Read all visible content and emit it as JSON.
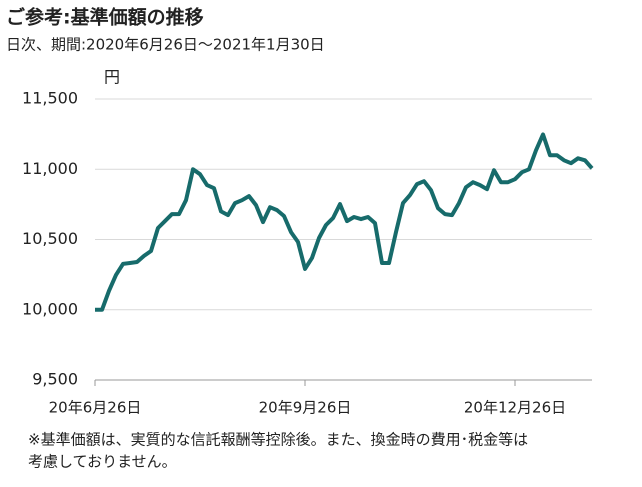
{
  "chart_data": {
    "type": "line",
    "title": "ご参考:基準価額の推移",
    "subtitle": "日次、期間:2020年6月26日～2021年1月30日",
    "y_label": "円",
    "categories": [
      "20年6月26日",
      null,
      null,
      null,
      null,
      null,
      null,
      null,
      null,
      null,
      null,
      null,
      null,
      null,
      null,
      null,
      null,
      null,
      null,
      null,
      null,
      null,
      null,
      null,
      null,
      null,
      null,
      null,
      null,
      null,
      "20年9月26日",
      null,
      null,
      null,
      null,
      null,
      null,
      null,
      null,
      null,
      null,
      null,
      null,
      null,
      null,
      null,
      null,
      null,
      null,
      null,
      null,
      null,
      null,
      null,
      null,
      null,
      null,
      null,
      null,
      null,
      "20年12月26日",
      null,
      null,
      null,
      null,
      null,
      null,
      null,
      null,
      null,
      null,
      null
    ],
    "values": [
      10000,
      10000,
      10135,
      10248,
      10326,
      10333,
      10340,
      10383,
      10418,
      10582,
      10631,
      10681,
      10681,
      10780,
      11000,
      10965,
      10887,
      10865,
      10700,
      10674,
      10759,
      10780,
      10809,
      10745,
      10624,
      10730,
      10709,
      10667,
      10553,
      10482,
      10291,
      10369,
      10511,
      10603,
      10652,
      10752,
      10631,
      10660,
      10645,
      10660,
      10617,
      10333,
      10333,
      10553,
      10759,
      10816,
      10894,
      10915,
      10851,
      10723,
      10681,
      10674,
      10759,
      10872,
      10908,
      10887,
      10858,
      10993,
      10908,
      10908,
      10929,
      10979,
      11000,
      11135,
      11248,
      11099,
      11099,
      11064,
      11043,
      11078,
      11064,
      11007
    ],
    "color": "#176b6b",
    "ylim": [
      9500,
      11500
    ],
    "yticks": [
      {
        "value": 9500,
        "label": "9,500"
      },
      {
        "value": 10000,
        "label": "10,000"
      },
      {
        "value": 10500,
        "label": "10,500"
      },
      {
        "value": 11000,
        "label": "11,000"
      },
      {
        "value": 11500,
        "label": "11,500"
      }
    ],
    "grid": true,
    "footnote": [
      "※基準価額は、実質的な信託報酬等控除後。また、換金時の費用･税金等は",
      "考慮しておりません。"
    ]
  }
}
